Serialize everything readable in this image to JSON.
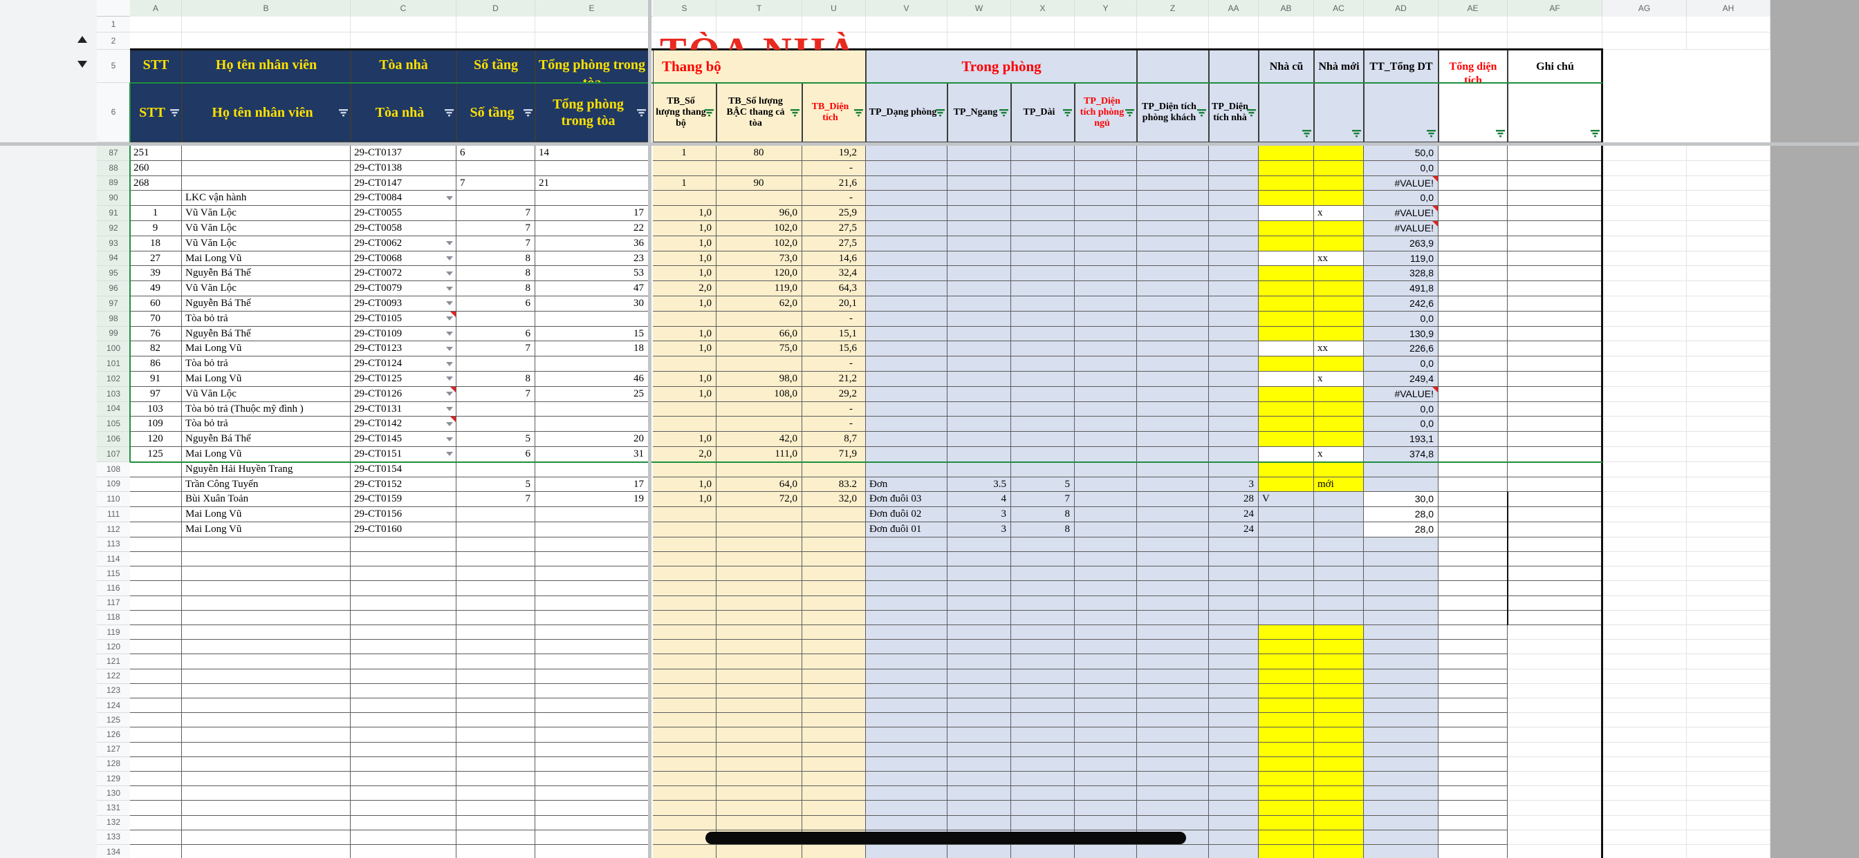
{
  "app": {
    "kind": "spreadsheet-grid"
  },
  "title_overlay": "TÒA NHÀ",
  "column_letters": [
    "A",
    "B",
    "C",
    "D",
    "E",
    "S",
    "T",
    "U",
    "V",
    "W",
    "X",
    "Y",
    "Z",
    "AA",
    "AB",
    "AC",
    "AD",
    "AE",
    "AF",
    "AG",
    "AH"
  ],
  "visible_row_numbers": [
    1,
    2,
    5,
    6,
    87,
    88,
    89,
    90,
    91,
    92,
    93,
    94,
    95,
    96,
    97,
    98,
    99,
    100,
    101,
    102,
    103,
    104,
    105,
    106,
    107,
    108,
    109,
    110,
    111,
    112,
    113,
    114,
    115,
    116,
    117,
    118,
    119,
    120,
    121,
    122,
    123,
    124,
    125,
    126,
    127,
    128,
    129,
    130,
    131,
    132,
    133,
    134
  ],
  "colors": {
    "navy": "#1F3864",
    "cream": "#FCF0CC",
    "blue": "#D8DFEF",
    "yellow": "#FFFF00",
    "red_text": "#FF0000",
    "filter_green": "#188038",
    "range_green": "#1E8E3E",
    "grid_dark": "#5B5B5B",
    "grid_faint": "#E2E3E5",
    "outside_gray": "#ABABAB",
    "header_tint": "#E7F0E8",
    "header_plain": "#F8F9FA"
  },
  "icons": {
    "filter": "filter-icon",
    "dropdown": "chevron-down-icon",
    "note": "note-corner-icon",
    "collapse_up": "collapse-up-icon",
    "collapse_down": "collapse-down-icon"
  },
  "header_row5": [
    {
      "cols": [
        "A"
      ],
      "label": "STT",
      "style": "navy"
    },
    {
      "cols": [
        "B"
      ],
      "label": "Họ tên nhân viên",
      "style": "navy"
    },
    {
      "cols": [
        "C"
      ],
      "label": "Tòa nhà",
      "style": "navy"
    },
    {
      "cols": [
        "D"
      ],
      "label": "Số tầng",
      "style": "navy"
    },
    {
      "cols": [
        "E"
      ],
      "label": "Tổng phòng trong tòa",
      "style": "navy"
    },
    {
      "cols": [
        "S",
        "U"
      ],
      "label": "Thang bộ",
      "style": "cream",
      "color": "red",
      "align": "left"
    },
    {
      "cols": [
        "V",
        "Y"
      ],
      "label": "Trong phòng",
      "style": "blue",
      "color": "red"
    },
    {
      "cols": [
        "Z"
      ],
      "label": "",
      "style": "blue"
    },
    {
      "cols": [
        "AA"
      ],
      "label": "",
      "style": "blue"
    }
  ],
  "header_tall": [
    {
      "col": "AB",
      "label": "Nhà cũ",
      "bg": "blue",
      "color": "black"
    },
    {
      "col": "AC",
      "label": "Nhà mới",
      "bg": "blue",
      "color": "black"
    },
    {
      "col": "AD",
      "label": "TT_Tổng DT",
      "bg": "blue",
      "color": "black"
    },
    {
      "col": "AE",
      "label": "Tổng diện tích",
      "bg": "white",
      "color": "red"
    },
    {
      "col": "AF",
      "label": "Ghi chú",
      "bg": "white",
      "color": "black"
    }
  ],
  "header_row6": [
    {
      "col": "A",
      "label": "STT",
      "style": "navy"
    },
    {
      "col": "B",
      "label": "Họ tên nhân viên",
      "style": "navy"
    },
    {
      "col": "C",
      "label": "Tòa nhà",
      "style": "navy"
    },
    {
      "col": "D",
      "label": "Số tầng",
      "style": "navy"
    },
    {
      "col": "E",
      "label": "Tổng phòng trong tòa",
      "style": "navy"
    },
    {
      "col": "S",
      "label": "TB_Số lượng thang bộ",
      "style": "cream",
      "color": "black"
    },
    {
      "col": "T",
      "label": "TB_Số lượng BẬC thang cả tòa",
      "style": "cream",
      "color": "black"
    },
    {
      "col": "U",
      "label": "TB_Diện tích",
      "style": "cream",
      "color": "red"
    },
    {
      "col": "V",
      "label": "TP_Dạng phòng",
      "style": "blue",
      "color": "black"
    },
    {
      "col": "W",
      "label": "TP_Ngang",
      "style": "blue",
      "color": "black"
    },
    {
      "col": "X",
      "label": "TP_Dài",
      "style": "blue",
      "color": "black"
    },
    {
      "col": "Y",
      "label": "TP_Diện tích phòng ngủ",
      "style": "blue",
      "color": "red"
    },
    {
      "col": "Z",
      "label": "TP_Diện tích phòng khách",
      "style": "blue",
      "color": "black"
    },
    {
      "col": "AA",
      "label": "TP_Diện tích nhà",
      "style": "blue",
      "color": "black"
    }
  ],
  "rows": [
    {
      "n": 87,
      "A": "251",
      "aAlign": "l",
      "C": "29-CT0137",
      "D": "6",
      "E": "14",
      "deAlign": "l",
      "S": "1",
      "T": "80",
      "stAlign": "c",
      "U": "19,2",
      "AD": "50,0"
    },
    {
      "n": 88,
      "A": "260",
      "aAlign": "l",
      "C": "29-CT0138",
      "U": "-",
      "AD": "0,0"
    },
    {
      "n": 89,
      "A": "268",
      "aAlign": "l",
      "C": "29-CT0147",
      "D": "7",
      "E": "21",
      "deAlign": "l",
      "S": "1",
      "T": "90",
      "stAlign": "c",
      "U": "21,6",
      "AD": "#VALUE!",
      "adNote": true
    },
    {
      "n": 90,
      "B": "LKC vận hành",
      "C": "29-CT0084",
      "dd": true,
      "U": "-",
      "AD": "0,0"
    },
    {
      "n": 91,
      "A": "1",
      "B": "Vũ Văn Lộc",
      "C": "29-CT0055",
      "D": "7",
      "E": "17",
      "S": "1,0",
      "T": "96,0",
      "U": "25,9",
      "AC": "x",
      "abWhite": true,
      "AD": "#VALUE!",
      "adNote": true
    },
    {
      "n": 92,
      "A": "9",
      "B": "Vũ Văn Lộc",
      "C": "29-CT0058",
      "D": "7",
      "E": "22",
      "S": "1,0",
      "T": "102,0",
      "U": "27,5",
      "AD": "#VALUE!",
      "adNote": true
    },
    {
      "n": 93,
      "A": "18",
      "B": "Vũ Văn Lộc",
      "C": "29-CT0062",
      "dd": true,
      "D": "7",
      "E": "36",
      "S": "1,0",
      "T": "102,0",
      "U": "27,5",
      "AD": "263,9"
    },
    {
      "n": 94,
      "A": "27",
      "B": "Mai Long Vũ",
      "C": "29-CT0068",
      "dd": true,
      "D": "8",
      "E": "23",
      "S": "1,0",
      "T": "73,0",
      "U": "14,6",
      "AC": "xx",
      "abWhite": true,
      "AD": "119,0"
    },
    {
      "n": 95,
      "A": "39",
      "B": "Nguyễn Bá Thế",
      "C": "29-CT0072",
      "dd": true,
      "D": "8",
      "E": "53",
      "S": "1,0",
      "T": "120,0",
      "U": "32,4",
      "AD": "328,8"
    },
    {
      "n": 96,
      "A": "49",
      "B": "Vũ Văn Lộc",
      "C": "29-CT0079",
      "dd": true,
      "D": "8",
      "E": "47",
      "S": "2,0",
      "T": "119,0",
      "U": "64,3",
      "AD": "491,8"
    },
    {
      "n": 97,
      "A": "60",
      "B": "Nguyễn Bá Thế",
      "C": "29-CT0093",
      "dd": true,
      "D": "6",
      "E": "30",
      "S": "1,0",
      "T": "62,0",
      "U": "20,1",
      "AD": "242,6"
    },
    {
      "n": 98,
      "A": "70",
      "B": "Tòa bỏ trả",
      "C": "29-CT0105",
      "dd": true,
      "cNote": true,
      "U": "-",
      "AD": "0,0"
    },
    {
      "n": 99,
      "A": "76",
      "B": "Nguyễn Bá Thế",
      "C": "29-CT0109",
      "dd": true,
      "D": "6",
      "E": "15",
      "S": "1,0",
      "T": "66,0",
      "U": "15,1",
      "AD": "130,9"
    },
    {
      "n": 100,
      "A": "82",
      "B": "Mai Long Vũ",
      "C": "29-CT0123",
      "dd": true,
      "D": "7",
      "E": "18",
      "S": "1,0",
      "T": "75,0",
      "U": "15,6",
      "AC": "xx",
      "abWhite": true,
      "AD": "226,6"
    },
    {
      "n": 101,
      "A": "86",
      "B": "Tòa bỏ trả",
      "C": "29-CT0124",
      "dd": true,
      "U": "-",
      "AD": "0,0"
    },
    {
      "n": 102,
      "A": "91",
      "B": "Mai Long Vũ",
      "C": "29-CT0125",
      "dd": true,
      "D": "8",
      "E": "46",
      "S": "1,0",
      "T": "98,0",
      "U": "21,2",
      "AC": "x",
      "abWhite": true,
      "AD": "249,4"
    },
    {
      "n": 103,
      "A": "97",
      "B": "Vũ Văn Lộc",
      "C": "29-CT0126",
      "dd": true,
      "cNote": true,
      "D": "7",
      "E": "25",
      "S": "1,0",
      "T": "108,0",
      "U": "29,2",
      "AD": "#VALUE!",
      "adNote": true
    },
    {
      "n": 104,
      "A": "103",
      "B": "Tòa bỏ trả (Thuộc mỹ đình )",
      "C": "29-CT0131",
      "dd": true,
      "U": "-",
      "AD": "0,0"
    },
    {
      "n": 105,
      "A": "109",
      "B": "Tòa bỏ trả",
      "C": "29-CT0142",
      "dd": true,
      "cNote": true,
      "U": "-",
      "AD": "0,0"
    },
    {
      "n": 106,
      "A": "120",
      "B": "Nguyễn Bá Thế",
      "C": "29-CT0145",
      "dd": true,
      "D": "5",
      "E": "20",
      "S": "1,0",
      "T": "42,0",
      "U": "8,7",
      "AD": "193,1"
    },
    {
      "n": 107,
      "A": "125",
      "B": "Mai Long Vũ",
      "C": "29-CT0151",
      "dd": true,
      "D": "6",
      "E": "31",
      "S": "2,0",
      "T": "111,0",
      "U": "71,9",
      "AC": "x",
      "abWhite": true,
      "AD": "374,8"
    },
    {
      "n": 108,
      "B": "Nguyễn Hải Huyền Trang",
      "C": "29-CT0154"
    },
    {
      "n": 109,
      "B": "Trần Công Tuyến",
      "C": "29-CT0152",
      "D": "5",
      "E": "17",
      "S": "1,0",
      "T": "64,0",
      "U": "83.2",
      "V": "Đơn",
      "W": "3.5",
      "X": "5",
      "AA": "3",
      "AC": "mới"
    },
    {
      "n": 110,
      "B": "Bùi Xuân Toản",
      "C": "29-CT0159",
      "D": "7",
      "E": "19",
      "S": "1,0",
      "T": "72,0",
      "U": "32,0",
      "V": "Đơn đuôi 03",
      "W": "4",
      "X": "7",
      "AA": "28",
      "AB": "V",
      "adWhite": true,
      "AD": "30,0",
      "abcBlue": true
    },
    {
      "n": 111,
      "B": "Mai Long Vũ",
      "C": "29-CT0156",
      "V": "Đơn đuôi 02",
      "W": "3",
      "X": "8",
      "AA": "24",
      "adWhite": true,
      "AD": "28,0",
      "abcBlue": true
    },
    {
      "n": 112,
      "B": "Mai Long Vũ",
      "C": "29-CT0160",
      "V": "Đơn đuôi 01",
      "W": "3",
      "X": "8",
      "AA": "24",
      "adWhite": true,
      "AD": "28,0",
      "abcBlue": true
    },
    {
      "n": 113,
      "abcBlue": true
    },
    {
      "n": 114,
      "abcBlue": true
    },
    {
      "n": 115,
      "abcBlue": true
    },
    {
      "n": 116,
      "abcBlue": true
    },
    {
      "n": 117,
      "abcBlue": true
    },
    {
      "n": 118,
      "abcBlue": true
    },
    {
      "n": 119
    },
    {
      "n": 120
    },
    {
      "n": 121
    },
    {
      "n": 122
    },
    {
      "n": 123
    },
    {
      "n": 124
    },
    {
      "n": 125
    },
    {
      "n": 126
    },
    {
      "n": 127
    },
    {
      "n": 128
    },
    {
      "n": 129
    },
    {
      "n": 130
    },
    {
      "n": 131
    },
    {
      "n": 132
    },
    {
      "n": 133
    },
    {
      "n": 134
    }
  ],
  "shapes": {
    "black_bar_row": 133
  }
}
